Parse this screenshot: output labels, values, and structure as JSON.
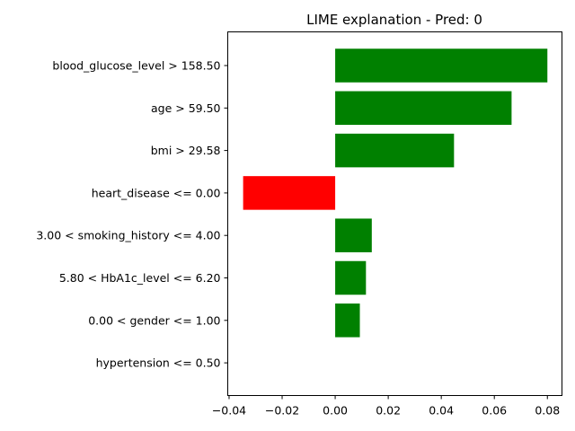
{
  "chart_data": {
    "type": "bar",
    "orientation": "horizontal",
    "title": "LIME explanation - Pred: 0",
    "xlabel": "",
    "ylabel": "",
    "xlim": [
      -0.0405,
      0.0855
    ],
    "xticks": [
      -0.04,
      -0.02,
      0.0,
      0.02,
      0.04,
      0.06,
      0.08
    ],
    "xtick_labels": [
      "−0.04",
      "−0.02",
      "0.00",
      "0.02",
      "0.04",
      "0.06",
      "0.08"
    ],
    "grid": false,
    "legend": "none",
    "positive_color": "#008000",
    "negative_color": "#ff0000",
    "categories": [
      "blood_glucose_level > 158.50",
      "age > 59.50",
      "bmi > 29.58",
      "heart_disease <= 0.00",
      "3.00 < smoking_history <= 4.00",
      "5.80 < HbA1c_level <= 6.20",
      "0.00 < gender <= 1.00",
      "hypertension <= 0.50"
    ],
    "values": [
      0.08,
      0.0665,
      0.0448,
      -0.0347,
      0.0138,
      0.0116,
      0.0093,
      0.0
    ]
  }
}
